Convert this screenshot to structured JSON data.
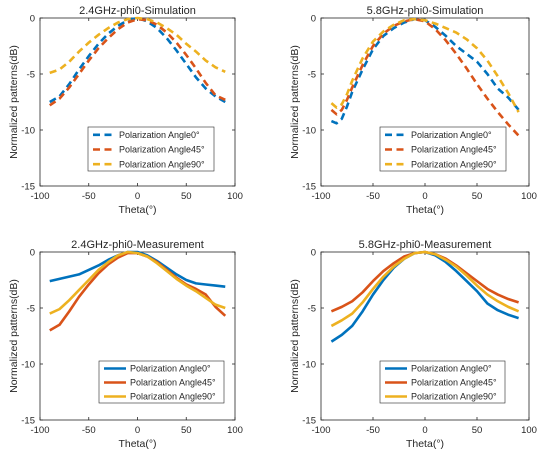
{
  "chart_data": [
    {
      "type": "line",
      "title": "2.4GHz-phi0-Simulation",
      "xlabel": "Theta(°)",
      "ylabel": "Normalized patterns(dB)",
      "xlim": [
        -100,
        100
      ],
      "ylim": [
        -15,
        0
      ],
      "xticks": [
        -100,
        -50,
        0,
        50,
        100
      ],
      "yticks": [
        -15,
        -10,
        -5,
        0
      ],
      "line_style": "dashed",
      "legend_position": "middle-left",
      "series": [
        {
          "name": "Polarization Angle0°",
          "color": "#0072BD",
          "x": [
            -90,
            -80,
            -70,
            -60,
            -50,
            -40,
            -30,
            -20,
            -10,
            0,
            10,
            20,
            30,
            40,
            50,
            60,
            70,
            80,
            90
          ],
          "y": [
            -7.5,
            -7.0,
            -5.9,
            -4.6,
            -3.4,
            -2.3,
            -1.4,
            -0.7,
            -0.2,
            0,
            -0.3,
            -0.9,
            -1.8,
            -2.9,
            -4.1,
            -5.3,
            -6.3,
            -7.0,
            -7.5
          ]
        },
        {
          "name": "Polarization Angle45°",
          "color": "#D95319",
          "x": [
            -90,
            -80,
            -70,
            -60,
            -50,
            -40,
            -30,
            -20,
            -10,
            0,
            10,
            20,
            30,
            40,
            50,
            60,
            70,
            80,
            90
          ],
          "y": [
            -7.8,
            -7.2,
            -6.2,
            -5.0,
            -3.8,
            -2.7,
            -1.8,
            -1.0,
            -0.4,
            -0.1,
            -0.2,
            -0.6,
            -1.3,
            -2.2,
            -3.3,
            -4.5,
            -5.8,
            -6.9,
            -7.3
          ]
        },
        {
          "name": "Polarization Angle90°",
          "color": "#EDB120",
          "x": [
            -90,
            -80,
            -70,
            -60,
            -50,
            -40,
            -30,
            -20,
            -10,
            0,
            10,
            20,
            30,
            40,
            50,
            60,
            70,
            80,
            90
          ],
          "y": [
            -4.9,
            -4.6,
            -3.9,
            -3.0,
            -2.2,
            -1.5,
            -0.9,
            -0.4,
            -0.1,
            0,
            -0.1,
            -0.4,
            -0.9,
            -1.5,
            -2.3,
            -3.0,
            -3.8,
            -4.4,
            -4.8
          ]
        }
      ]
    },
    {
      "type": "line",
      "title": "5.8GHz-phi0-Simulation",
      "xlabel": "Theta(°)",
      "ylabel": "Normalized patterns(dB)",
      "xlim": [
        -100,
        100
      ],
      "ylim": [
        -15,
        0
      ],
      "xticks": [
        -100,
        -50,
        0,
        50,
        100
      ],
      "yticks": [
        -15,
        -10,
        -5,
        0
      ],
      "line_style": "dashed",
      "legend_position": "middle-left",
      "series": [
        {
          "name": "Polarization Angle0°",
          "color": "#0072BD",
          "x": [
            -90,
            -85,
            -80,
            -75,
            -70,
            -60,
            -50,
            -40,
            -30,
            -20,
            -10,
            0,
            10,
            20,
            30,
            40,
            50,
            60,
            70,
            80,
            90
          ],
          "y": [
            -9.2,
            -9.4,
            -9.0,
            -7.9,
            -6.6,
            -4.6,
            -2.8,
            -1.6,
            -0.9,
            -0.4,
            -0.1,
            -0.2,
            -0.8,
            -1.6,
            -2.5,
            -3.2,
            -3.9,
            -5.0,
            -6.3,
            -7.1,
            -8.2
          ]
        },
        {
          "name": "Polarization Angle45°",
          "color": "#D95319",
          "x": [
            -90,
            -85,
            -80,
            -75,
            -70,
            -60,
            -50,
            -40,
            -30,
            -20,
            -10,
            0,
            10,
            20,
            30,
            40,
            50,
            60,
            70,
            80,
            90
          ],
          "y": [
            -8.2,
            -8.6,
            -8.2,
            -7.3,
            -6.2,
            -4.2,
            -2.5,
            -1.4,
            -0.7,
            -0.3,
            -0.1,
            -0.3,
            -1.0,
            -2.0,
            -3.2,
            -4.5,
            -5.9,
            -7.2,
            -8.4,
            -9.5,
            -10.5
          ]
        },
        {
          "name": "Polarization Angle90°",
          "color": "#EDB120",
          "x": [
            -90,
            -85,
            -80,
            -75,
            -70,
            -60,
            -50,
            -40,
            -30,
            -20,
            -10,
            0,
            10,
            20,
            30,
            40,
            50,
            60,
            70,
            80,
            90
          ],
          "y": [
            -7.6,
            -8.0,
            -7.7,
            -6.8,
            -5.6,
            -3.6,
            -2.1,
            -1.2,
            -0.6,
            -0.2,
            -0.1,
            -0.2,
            -0.5,
            -0.9,
            -1.3,
            -1.9,
            -2.7,
            -3.8,
            -5.2,
            -6.7,
            -8.4
          ]
        }
      ]
    },
    {
      "type": "line",
      "title": "2.4GHz-phi0-Measurement",
      "xlabel": "Theta(°)",
      "ylabel": "Normalized patterns(dB)",
      "xlim": [
        -100,
        100
      ],
      "ylim": [
        -15,
        0
      ],
      "xticks": [
        -100,
        -50,
        0,
        50,
        100
      ],
      "yticks": [
        -15,
        -10,
        -5,
        0
      ],
      "line_style": "solid",
      "legend_position": "bottom-center",
      "series": [
        {
          "name": "Polarization Angle0°",
          "color": "#0072BD",
          "x": [
            -90,
            -80,
            -70,
            -60,
            -50,
            -40,
            -30,
            -20,
            -10,
            0,
            10,
            20,
            30,
            40,
            50,
            60,
            70,
            80,
            90
          ],
          "y": [
            -2.6,
            -2.4,
            -2.2,
            -2.0,
            -1.6,
            -1.2,
            -0.7,
            -0.3,
            0,
            0,
            -0.3,
            -0.8,
            -1.4,
            -2.0,
            -2.5,
            -2.8,
            -2.9,
            -3.0,
            -3.1
          ]
        },
        {
          "name": "Polarization Angle45°",
          "color": "#D95319",
          "x": [
            -90,
            -80,
            -70,
            -60,
            -50,
            -40,
            -30,
            -20,
            -10,
            0,
            10,
            20,
            30,
            40,
            50,
            60,
            70,
            80,
            90
          ],
          "y": [
            -7.0,
            -6.5,
            -5.3,
            -4.0,
            -2.9,
            -1.9,
            -1.1,
            -0.5,
            -0.1,
            -0.1,
            -0.4,
            -0.9,
            -1.6,
            -2.3,
            -2.9,
            -3.3,
            -3.8,
            -4.9,
            -5.7
          ]
        },
        {
          "name": "Polarization Angle90°",
          "color": "#EDB120",
          "x": [
            -90,
            -80,
            -70,
            -60,
            -50,
            -40,
            -30,
            -20,
            -10,
            0,
            10,
            20,
            30,
            40,
            50,
            60,
            70,
            80,
            90
          ],
          "y": [
            -5.5,
            -5.1,
            -4.3,
            -3.4,
            -2.5,
            -1.6,
            -0.9,
            -0.3,
            0,
            -0.1,
            -0.4,
            -1.0,
            -1.7,
            -2.4,
            -3.0,
            -3.5,
            -4.1,
            -4.7,
            -5.0
          ]
        }
      ]
    },
    {
      "type": "line",
      "title": "5.8GHz-phi0-Measurement",
      "xlabel": "Theta(°)",
      "ylabel": "Normalized patterns(dB)",
      "xlim": [
        -100,
        100
      ],
      "ylim": [
        -15,
        0
      ],
      "xticks": [
        -100,
        -50,
        0,
        50,
        100
      ],
      "yticks": [
        -15,
        -10,
        -5,
        0
      ],
      "line_style": "solid",
      "legend_position": "bottom-center",
      "series": [
        {
          "name": "Polarization Angle0°",
          "color": "#0072BD",
          "x": [
            -90,
            -80,
            -70,
            -60,
            -50,
            -40,
            -30,
            -20,
            -10,
            0,
            10,
            20,
            30,
            40,
            50,
            60,
            70,
            80,
            90
          ],
          "y": [
            -8.0,
            -7.4,
            -6.6,
            -5.3,
            -3.8,
            -2.5,
            -1.4,
            -0.6,
            -0.1,
            0,
            -0.3,
            -0.9,
            -1.7,
            -2.6,
            -3.5,
            -4.6,
            -5.2,
            -5.6,
            -5.9
          ]
        },
        {
          "name": "Polarization Angle45°",
          "color": "#D95319",
          "x": [
            -90,
            -80,
            -70,
            -60,
            -50,
            -40,
            -30,
            -20,
            -10,
            0,
            10,
            20,
            30,
            40,
            50,
            60,
            70,
            80,
            90
          ],
          "y": [
            -5.3,
            -4.9,
            -4.4,
            -3.6,
            -2.6,
            -1.7,
            -1.0,
            -0.4,
            -0.1,
            0,
            -0.2,
            -0.6,
            -1.2,
            -1.9,
            -2.6,
            -3.3,
            -3.8,
            -4.2,
            -4.5
          ]
        },
        {
          "name": "Polarization Angle90°",
          "color": "#EDB120",
          "x": [
            -90,
            -80,
            -70,
            -60,
            -50,
            -40,
            -30,
            -20,
            -10,
            0,
            10,
            20,
            30,
            40,
            50,
            60,
            70,
            80,
            90
          ],
          "y": [
            -6.6,
            -6.1,
            -5.5,
            -4.5,
            -3.3,
            -2.2,
            -1.3,
            -0.6,
            -0.1,
            0,
            -0.2,
            -0.7,
            -1.3,
            -2.1,
            -3.0,
            -3.8,
            -4.4,
            -4.9,
            -5.3
          ]
        }
      ]
    }
  ]
}
